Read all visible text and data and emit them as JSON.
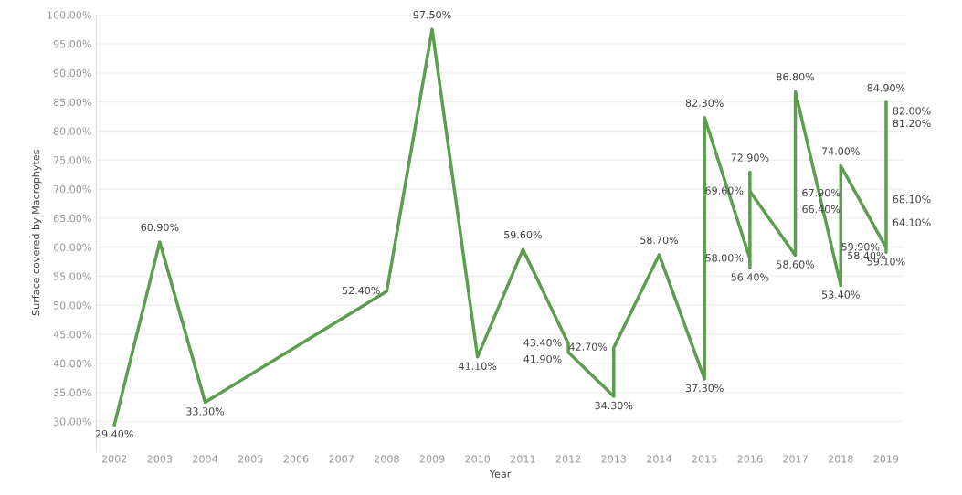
{
  "chart_data": {
    "type": "line",
    "xlabel": "Year",
    "ylabel": "Surface covered by Macrophytes",
    "x": [
      2002,
      2003,
      2004,
      2008,
      2009,
      2010,
      2011,
      2012,
      2012,
      2013,
      2013,
      2014,
      2015,
      2015,
      2016,
      2016,
      2016,
      2016,
      2017,
      2017,
      2017,
      2017,
      2018,
      2018,
      2018,
      2019,
      2019,
      2019,
      2019,
      2019,
      2019,
      2019
    ],
    "series": [
      {
        "color": "#5a9e4e",
        "values": [
          29.4,
          60.9,
          33.3,
          52.4,
          97.5,
          41.1,
          59.6,
          43.4,
          41.9,
          34.3,
          42.7,
          58.7,
          37.3,
          82.3,
          58.0,
          56.4,
          72.9,
          69.6,
          58.6,
          66.4,
          67.9,
          86.8,
          53.4,
          58.4,
          74.0,
          59.9,
          59.1,
          64.1,
          68.1,
          81.2,
          82.0,
          84.9
        ],
        "value_labels": [
          "29.40%",
          "60.90%",
          "33.30%",
          "52.40%",
          "97.50%",
          "41.10%",
          "59.60%",
          "43.40%",
          "41.90%",
          "34.30%",
          "42.70%",
          "58.70%",
          "37.30%",
          "82.30%",
          "58.00%",
          "56.40%",
          "72.90%",
          "69.60%",
          "58.60%",
          "66.40%",
          "67.90%",
          "86.80%",
          "53.40%",
          "58.40%",
          "74.00%",
          "59.90%",
          "59.10%",
          "64.10%",
          "68.10%",
          "81.20%",
          "82.00%",
          "84.90%"
        ]
      }
    ],
    "xlim": [
      2001.6,
      2019.4
    ],
    "xticks": [
      2002,
      2003,
      2004,
      2005,
      2006,
      2007,
      2008,
      2009,
      2010,
      2011,
      2012,
      2013,
      2014,
      2015,
      2016,
      2017,
      2018,
      2019
    ],
    "ylim": [
      25,
      100
    ],
    "yticks": [
      {
        "value": 30,
        "label": "30.00%"
      },
      {
        "value": 35,
        "label": "35.00%"
      },
      {
        "value": 40,
        "label": "40.00%"
      },
      {
        "value": 45,
        "label": "45.00%"
      },
      {
        "value": 50,
        "label": "50.00%"
      },
      {
        "value": 55,
        "label": "55.00%"
      },
      {
        "value": 60,
        "label": "60.00%"
      },
      {
        "value": 65,
        "label": "65.00%"
      },
      {
        "value": 70,
        "label": "70.00%"
      },
      {
        "value": 75,
        "label": "75.00%"
      },
      {
        "value": 80,
        "label": "80.00%"
      },
      {
        "value": 85,
        "label": "85.00%"
      },
      {
        "value": 90,
        "label": "90.00%"
      },
      {
        "value": 95,
        "label": "95.00%"
      },
      {
        "value": 100,
        "label": "100.00%"
      }
    ],
    "grid": "y",
    "marker": "none",
    "line_style": "solid"
  }
}
